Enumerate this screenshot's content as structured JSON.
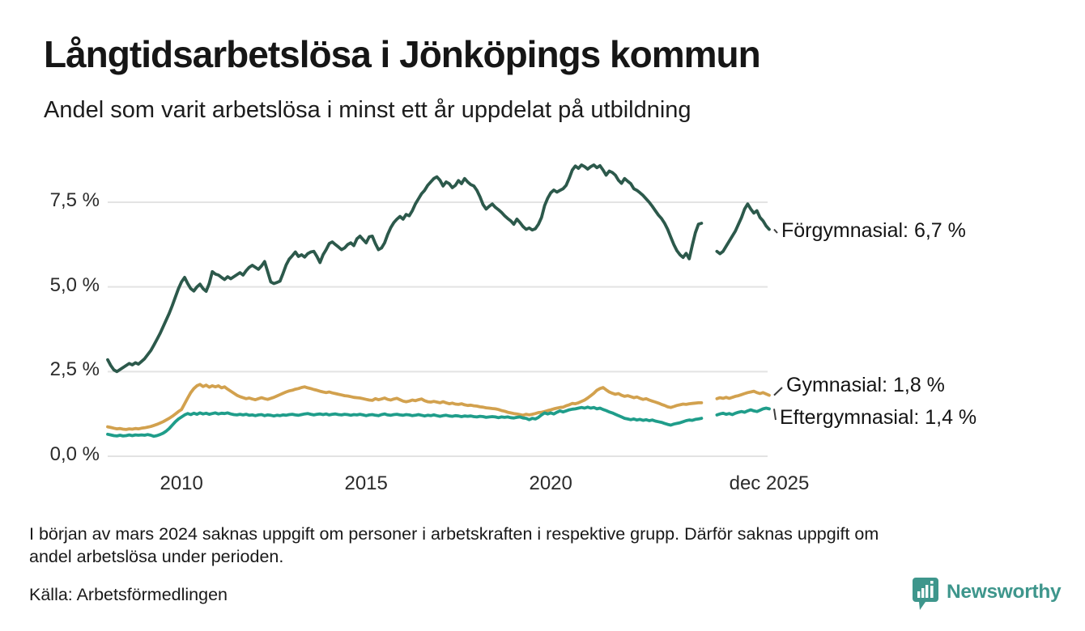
{
  "header": {
    "title": "Långtidsarbetslösa i Jönköpings kommun",
    "subtitle": "Andel som varit arbetslösa i minst ett år uppdelat på utbildning"
  },
  "footer": {
    "footnote_line1": "I början av mars 2024 saknas uppgift om personer i arbetskraften i respektive grupp. Därför saknas uppgift om",
    "footnote_line2": "andel arbetslösa under perioden.",
    "source": "Källa: Arbetsförmedlingen",
    "brand_name": "Newsworthy",
    "brand_color": "#3e968c"
  },
  "chart_data": {
    "type": "line",
    "title": "Långtidsarbetslösa i Jönköpings kommun",
    "subtitle": "Andel som varit arbetslösa i minst ett år uppdelat på utbildning",
    "unit": "%",
    "grid": true,
    "grid_color": "#e3e3e3",
    "x_axis": {
      "range": [
        2008.0,
        2025.9167
      ],
      "ticks": [
        {
          "label": "2010",
          "t": 2010
        },
        {
          "label": "2015",
          "t": 2015
        },
        {
          "label": "2020",
          "t": 2020
        },
        {
          "label": "dec 2025",
          "t": 2025.9167
        }
      ]
    },
    "y_axis": {
      "range": [
        0,
        8.8
      ],
      "ticks": [
        {
          "label": "0,0 %",
          "v": 0
        },
        {
          "label": "2,5 %",
          "v": 2.5
        },
        {
          "label": "5,0 %",
          "v": 5
        },
        {
          "label": "7,5 %",
          "v": 7.5
        }
      ]
    },
    "data_gap": {
      "from": 2024.17,
      "to": 2024.5,
      "reason": "saknas uppgift (mars 2024)"
    },
    "series": [
      {
        "name": "Förgymnasial",
        "label": "Förgymnasial: 6,7 %",
        "latest_value": 6.7,
        "color": "#2c594b",
        "segments": [
          {
            "start": 2008.0,
            "step_years": 0.0833333,
            "values": [
              2.85,
              2.68,
              2.55,
              2.5,
              2.56,
              2.62,
              2.68,
              2.74,
              2.7,
              2.76,
              2.72,
              2.8,
              2.88,
              3.0,
              3.12,
              3.28,
              3.45,
              3.62,
              3.82,
              4.02,
              4.22,
              4.45,
              4.7,
              4.95,
              5.15,
              5.28,
              5.1,
              4.95,
              4.88,
              5.0,
              5.08,
              4.95,
              4.87,
              5.1,
              5.45,
              5.38,
              5.35,
              5.28,
              5.22,
              5.3,
              5.24,
              5.3,
              5.36,
              5.42,
              5.35,
              5.48,
              5.58,
              5.64,
              5.58,
              5.52,
              5.62,
              5.75,
              5.45,
              5.15,
              5.1,
              5.13,
              5.17,
              5.4,
              5.65,
              5.82,
              5.92,
              6.03,
              5.9,
              5.95,
              5.88,
              5.98,
              6.03,
              6.05,
              5.9,
              5.72,
              5.95,
              6.1,
              6.28,
              6.33,
              6.25,
              6.18,
              6.1,
              6.15,
              6.25,
              6.3,
              6.22,
              6.42,
              6.5,
              6.4,
              6.3,
              6.48,
              6.5,
              6.28,
              6.1,
              6.15,
              6.3,
              6.55,
              6.75,
              6.9,
              7.0,
              7.08,
              7.0,
              7.14,
              7.1,
              7.25,
              7.45,
              7.6,
              7.75,
              7.85,
              8.0,
              8.1,
              8.2,
              8.25,
              8.15,
              7.98,
              8.1,
              8.05,
              7.93,
              8.0,
              8.14,
              8.05,
              8.2,
              8.1,
              8.02,
              7.98,
              7.85,
              7.66,
              7.43,
              7.3,
              7.38,
              7.45,
              7.35,
              7.28,
              7.2,
              7.1,
              7.02,
              6.95,
              6.85,
              7.0,
              6.9,
              6.78,
              6.7,
              6.74,
              6.68,
              6.72,
              6.85,
              7.05,
              7.4,
              7.62,
              7.78,
              7.86,
              7.8,
              7.85,
              7.9,
              8.0,
              8.21,
              8.45,
              8.57,
              8.5,
              8.6,
              8.55,
              8.48,
              8.55,
              8.6,
              8.52,
              8.58,
              8.45,
              8.3,
              8.42,
              8.38,
              8.3,
              8.15,
              8.06,
              8.2,
              8.12,
              8.05,
              7.9,
              7.85,
              7.78,
              7.7,
              7.6,
              7.5,
              7.38,
              7.25,
              7.12,
              7.02,
              6.88,
              6.7,
              6.47,
              6.25,
              6.07,
              5.95,
              5.87,
              5.99,
              5.83,
              6.23,
              6.6,
              6.85,
              6.88
            ]
          },
          {
            "start": 2024.5,
            "step_years": 0.0833333,
            "values": [
              6.05,
              5.98,
              6.05,
              6.2,
              6.35,
              6.5,
              6.65,
              6.85,
              7.05,
              7.3,
              7.45,
              7.3,
              7.18,
              7.25,
              7.05,
              6.95,
              6.8,
              6.7
            ]
          }
        ]
      },
      {
        "name": "Gymnasial",
        "label": "Gymnasial: 1,8 %",
        "latest_value": 1.8,
        "color": "#d2a14e",
        "segments": [
          {
            "start": 2008.0,
            "step_years": 0.0833333,
            "values": [
              0.87,
              0.85,
              0.83,
              0.81,
              0.82,
              0.8,
              0.79,
              0.81,
              0.8,
              0.82,
              0.81,
              0.83,
              0.84,
              0.86,
              0.88,
              0.91,
              0.94,
              0.98,
              1.02,
              1.07,
              1.12,
              1.18,
              1.25,
              1.32,
              1.38,
              1.55,
              1.72,
              1.88,
              2.0,
              2.08,
              2.12,
              2.06,
              2.1,
              2.04,
              2.08,
              2.05,
              2.08,
              2.02,
              2.05,
              1.98,
              1.92,
              1.86,
              1.8,
              1.76,
              1.73,
              1.7,
              1.72,
              1.69,
              1.67,
              1.7,
              1.73,
              1.7,
              1.68,
              1.71,
              1.74,
              1.78,
              1.82,
              1.86,
              1.9,
              1.93,
              1.95,
              1.98,
              2.0,
              2.03,
              2.05,
              2.02,
              2.0,
              1.97,
              1.95,
              1.92,
              1.9,
              1.88,
              1.9,
              1.87,
              1.85,
              1.83,
              1.81,
              1.79,
              1.78,
              1.76,
              1.74,
              1.73,
              1.72,
              1.7,
              1.68,
              1.66,
              1.65,
              1.7,
              1.67,
              1.69,
              1.72,
              1.68,
              1.66,
              1.69,
              1.71,
              1.67,
              1.63,
              1.61,
              1.63,
              1.66,
              1.64,
              1.67,
              1.69,
              1.64,
              1.61,
              1.6,
              1.62,
              1.6,
              1.58,
              1.61,
              1.58,
              1.55,
              1.57,
              1.54,
              1.53,
              1.55,
              1.52,
              1.5,
              1.51,
              1.49,
              1.48,
              1.46,
              1.45,
              1.43,
              1.42,
              1.41,
              1.4,
              1.38,
              1.35,
              1.33,
              1.3,
              1.28,
              1.26,
              1.25,
              1.23,
              1.21,
              1.24,
              1.22,
              1.24,
              1.26,
              1.29,
              1.3,
              1.32,
              1.35,
              1.37,
              1.4,
              1.42,
              1.44,
              1.45,
              1.49,
              1.52,
              1.56,
              1.55,
              1.58,
              1.62,
              1.66,
              1.72,
              1.79,
              1.86,
              1.95,
              2.0,
              2.03,
              1.96,
              1.9,
              1.86,
              1.83,
              1.85,
              1.8,
              1.77,
              1.79,
              1.76,
              1.73,
              1.75,
              1.71,
              1.68,
              1.7,
              1.66,
              1.63,
              1.6,
              1.57,
              1.53,
              1.5,
              1.46,
              1.44,
              1.47,
              1.5,
              1.52,
              1.54,
              1.53,
              1.55,
              1.56,
              1.57,
              1.58,
              1.58
            ]
          },
          {
            "start": 2024.5,
            "step_years": 0.0833333,
            "values": [
              1.7,
              1.73,
              1.71,
              1.74,
              1.71,
              1.74,
              1.77,
              1.79,
              1.82,
              1.85,
              1.88,
              1.9,
              1.92,
              1.88,
              1.85,
              1.88,
              1.84,
              1.8
            ]
          }
        ]
      },
      {
        "name": "Eftergymnasial",
        "label": "Eftergymnasial: 1,4 %",
        "latest_value": 1.4,
        "color": "#1f9d8a",
        "segments": [
          {
            "start": 2008.0,
            "step_years": 0.0833333,
            "values": [
              0.65,
              0.63,
              0.61,
              0.6,
              0.62,
              0.6,
              0.61,
              0.63,
              0.61,
              0.63,
              0.62,
              0.63,
              0.62,
              0.64,
              0.62,
              0.59,
              0.61,
              0.64,
              0.68,
              0.74,
              0.82,
              0.92,
              1.02,
              1.1,
              1.16,
              1.22,
              1.26,
              1.23,
              1.27,
              1.24,
              1.28,
              1.25,
              1.27,
              1.24,
              1.26,
              1.28,
              1.25,
              1.27,
              1.26,
              1.28,
              1.25,
              1.23,
              1.22,
              1.24,
              1.22,
              1.24,
              1.21,
              1.22,
              1.2,
              1.22,
              1.23,
              1.2,
              1.22,
              1.21,
              1.19,
              1.21,
              1.2,
              1.22,
              1.21,
              1.23,
              1.24,
              1.22,
              1.21,
              1.23,
              1.25,
              1.26,
              1.24,
              1.22,
              1.24,
              1.25,
              1.23,
              1.25,
              1.22,
              1.24,
              1.25,
              1.23,
              1.22,
              1.24,
              1.23,
              1.21,
              1.23,
              1.22,
              1.24,
              1.22,
              1.2,
              1.22,
              1.23,
              1.21,
              1.2,
              1.23,
              1.25,
              1.22,
              1.21,
              1.23,
              1.24,
              1.22,
              1.21,
              1.23,
              1.22,
              1.2,
              1.21,
              1.23,
              1.21,
              1.19,
              1.21,
              1.2,
              1.22,
              1.2,
              1.18,
              1.2,
              1.21,
              1.19,
              1.18,
              1.2,
              1.19,
              1.17,
              1.19,
              1.18,
              1.19,
              1.17,
              1.16,
              1.18,
              1.17,
              1.15,
              1.16,
              1.17,
              1.16,
              1.14,
              1.16,
              1.15,
              1.16,
              1.14,
              1.13,
              1.15,
              1.16,
              1.13,
              1.12,
              1.08,
              1.12,
              1.1,
              1.15,
              1.22,
              1.28,
              1.25,
              1.28,
              1.25,
              1.3,
              1.34,
              1.31,
              1.34,
              1.37,
              1.39,
              1.4,
              1.42,
              1.44,
              1.42,
              1.45,
              1.42,
              1.44,
              1.4,
              1.42,
              1.38,
              1.35,
              1.31,
              1.28,
              1.24,
              1.2,
              1.16,
              1.12,
              1.1,
              1.08,
              1.1,
              1.07,
              1.09,
              1.06,
              1.08,
              1.05,
              1.07,
              1.04,
              1.02,
              1.0,
              0.97,
              0.94,
              0.92,
              0.95,
              0.97,
              0.99,
              1.02,
              1.05,
              1.07,
              1.06,
              1.09,
              1.1,
              1.12
            ]
          },
          {
            "start": 2024.5,
            "step_years": 0.0833333,
            "values": [
              1.22,
              1.25,
              1.27,
              1.24,
              1.26,
              1.23,
              1.27,
              1.3,
              1.32,
              1.3,
              1.34,
              1.37,
              1.34,
              1.32,
              1.36,
              1.4,
              1.42,
              1.4
            ]
          }
        ]
      }
    ],
    "legend_position": "right-of-line-end"
  }
}
